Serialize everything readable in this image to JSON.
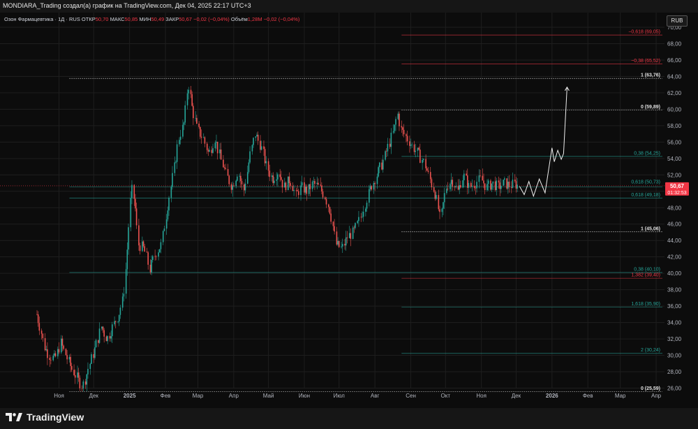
{
  "header": {
    "title": "MONDIARA_Trading создал(а) график на TradingView.com, Дек 04, 2025 22:17 UTC+3"
  },
  "symbol_bar": {
    "symbol": "Озон Фармацевтика · 1Д · RUS",
    "items": [
      {
        "label": "ОТКР",
        "value": "50,70"
      },
      {
        "label": "МАКС",
        "value": "50,85"
      },
      {
        "label": "МИН",
        "value": "50,49"
      },
      {
        "label": "ЗАКР",
        "value": "50,67"
      },
      {
        "label": "",
        "value": "−0,02 (−0,04%)"
      },
      {
        "label": "Объём",
        "value": "1,28М"
      },
      {
        "label": "",
        "value": "−0,02 (−0,04%)"
      }
    ]
  },
  "currency": "RUB",
  "last_price": {
    "price": "50,67",
    "countdown": "01:32:53",
    "value": 50.67
  },
  "colors": {
    "up": "#26a69a",
    "down": "#ef5350",
    "background": "#0c0c0c",
    "grid": "#1e1e1e",
    "label_red": "#f23645"
  },
  "brand": {
    "name": "TradingView",
    "icon": "tradingview-logo-icon"
  },
  "chart_data": {
    "type": "candlestick",
    "y_axis": {
      "ticks": [
        26,
        28,
        30,
        32,
        34,
        36,
        38,
        40,
        42,
        44,
        46,
        48,
        50,
        52,
        54,
        56,
        58,
        60,
        62,
        64,
        66,
        68,
        70
      ],
      "tick_labels": [
        "26,00",
        "28,00",
        "30,00",
        "32,00",
        "34,00",
        "36,00",
        "38,00",
        "40,00",
        "42,00",
        "44,00",
        "46,00",
        "48,00",
        "50,00",
        "52,00",
        "54,00",
        "56,00",
        "58,00",
        "60,00",
        "62,00",
        "64,00",
        "66,00",
        "68,00",
        "70,00"
      ],
      "range": [
        24.5,
        71
      ]
    },
    "x_axis": {
      "labels": [
        "Ноя",
        "Дек",
        "2025",
        "Фев",
        "Мар",
        "Апр",
        "Май",
        "Июн",
        "Июл",
        "Авг",
        "Сен",
        "Окт",
        "Ноя",
        "Дек",
        "2026",
        "Фев",
        "Мар",
        "Апр"
      ],
      "label_dates": [
        "2024-11-01",
        "2024-12-01",
        "2025-01-01",
        "2025-02-01",
        "2025-03-01",
        "2025-04-01",
        "2025-05-01",
        "2025-06-01",
        "2025-07-01",
        "2025-08-01",
        "2025-09-01",
        "2025-10-01",
        "2025-11-01",
        "2025-12-01",
        "2026-01-01",
        "2026-02-01",
        "2026-03-01",
        "2026-04-01"
      ],
      "range_dates": [
        "2024-10-13",
        "2026-04-07"
      ]
    },
    "price_path": [
      [
        "2024-10-13",
        35.0
      ],
      [
        "2024-10-16",
        33.5
      ],
      [
        "2024-10-20",
        31.0
      ],
      [
        "2024-10-24",
        30.0
      ],
      [
        "2024-10-29",
        29.5
      ],
      [
        "2024-11-03",
        31.5
      ],
      [
        "2024-11-06",
        30.5
      ],
      [
        "2024-11-12",
        28.5
      ],
      [
        "2024-11-18",
        27.0
      ],
      [
        "2024-11-22",
        26.2
      ],
      [
        "2024-11-27",
        28.5
      ],
      [
        "2024-12-03",
        31.0
      ],
      [
        "2024-12-08",
        33.5
      ],
      [
        "2024-12-13",
        32.0
      ],
      [
        "2024-12-18",
        33.5
      ],
      [
        "2024-12-23",
        35.0
      ],
      [
        "2024-12-27",
        37.0
      ],
      [
        "2024-12-31",
        44.0
      ],
      [
        "2025-01-03",
        50.5
      ],
      [
        "2025-01-06",
        48.5
      ],
      [
        "2025-01-09",
        43.5
      ],
      [
        "2025-01-14",
        43.0
      ],
      [
        "2025-01-19",
        40.5
      ],
      [
        "2025-01-24",
        42.5
      ],
      [
        "2025-01-29",
        43.5
      ],
      [
        "2025-02-03",
        48.0
      ],
      [
        "2025-02-08",
        52.0
      ],
      [
        "2025-02-13",
        56.5
      ],
      [
        "2025-02-18",
        58.5
      ],
      [
        "2025-02-21",
        63.5
      ],
      [
        "2025-02-24",
        60.5
      ],
      [
        "2025-03-01",
        57.5
      ],
      [
        "2025-03-06",
        56.5
      ],
      [
        "2025-03-11",
        54.5
      ],
      [
        "2025-03-16",
        56.5
      ],
      [
        "2025-03-21",
        54.0
      ],
      [
        "2025-03-26",
        52.0
      ],
      [
        "2025-03-31",
        50.5
      ],
      [
        "2025-04-05",
        52.5
      ],
      [
        "2025-04-10",
        50.0
      ],
      [
        "2025-04-15",
        54.0
      ],
      [
        "2025-04-20",
        57.0
      ],
      [
        "2025-04-25",
        55.5
      ],
      [
        "2025-04-30",
        53.0
      ],
      [
        "2025-05-05",
        51.5
      ],
      [
        "2025-05-10",
        52.5
      ],
      [
        "2025-05-15",
        50.5
      ],
      [
        "2025-05-20",
        51.5
      ],
      [
        "2025-05-25",
        49.5
      ],
      [
        "2025-05-30",
        50.5
      ],
      [
        "2025-06-04",
        50.0
      ],
      [
        "2025-06-09",
        51.0
      ],
      [
        "2025-06-14",
        50.5
      ],
      [
        "2025-06-19",
        49.5
      ],
      [
        "2025-06-24",
        47.5
      ],
      [
        "2025-06-29",
        43.5
      ],
      [
        "2025-07-04",
        43.0
      ],
      [
        "2025-07-09",
        44.5
      ],
      [
        "2025-07-14",
        45.0
      ],
      [
        "2025-07-19",
        46.5
      ],
      [
        "2025-07-24",
        48.5
      ],
      [
        "2025-07-29",
        50.5
      ],
      [
        "2025-08-03",
        52.0
      ],
      [
        "2025-08-08",
        53.5
      ],
      [
        "2025-08-13",
        55.5
      ],
      [
        "2025-08-18",
        57.5
      ],
      [
        "2025-08-21",
        59.5
      ],
      [
        "2025-08-24",
        57.5
      ],
      [
        "2025-08-29",
        56.5
      ],
      [
        "2025-09-03",
        55.5
      ],
      [
        "2025-09-08",
        54.5
      ],
      [
        "2025-09-13",
        53.5
      ],
      [
        "2025-09-18",
        51.5
      ],
      [
        "2025-09-23",
        49.5
      ],
      [
        "2025-09-27",
        46.5
      ],
      [
        "2025-10-02",
        50.5
      ],
      [
        "2025-10-07",
        51.5
      ],
      [
        "2025-10-12",
        50.0
      ],
      [
        "2025-10-17",
        52.0
      ],
      [
        "2025-10-22",
        50.5
      ],
      [
        "2025-10-27",
        51.0
      ],
      [
        "2025-11-01",
        51.5
      ],
      [
        "2025-11-06",
        50.5
      ],
      [
        "2025-11-11",
        51.0
      ],
      [
        "2025-11-16",
        50.5
      ],
      [
        "2025-11-21",
        51.0
      ],
      [
        "2025-11-26",
        50.7
      ],
      [
        "2025-11-30",
        50.9
      ],
      [
        "2025-12-04",
        50.67
      ]
    ],
    "forecast_path": [
      [
        "2025-12-04",
        50.6
      ],
      [
        "2025-12-08",
        49.6
      ],
      [
        "2025-12-12",
        51.2
      ],
      [
        "2025-12-16",
        49.4
      ],
      [
        "2025-12-21",
        51.5
      ],
      [
        "2025-12-26",
        49.8
      ],
      [
        "2026-01-01",
        55.3
      ],
      [
        "2026-01-03",
        53.6
      ],
      [
        "2026-01-06",
        55.0
      ],
      [
        "2026-01-09",
        53.9
      ],
      [
        "2026-01-11",
        54.6
      ],
      [
        "2026-01-14",
        62.7
      ]
    ],
    "fib_levels": [
      {
        "label": "−0,618 (69,05)",
        "value": 69.05,
        "color": "#f23645",
        "x_start_date": "2025-08-24",
        "emph": false
      },
      {
        "label": "−0,38 (65,52)",
        "value": 65.52,
        "color": "#f23645",
        "x_start_date": "2025-08-24",
        "emph": false
      },
      {
        "label": "1 (63,76)",
        "value": 63.76,
        "color": "#e0e0e0",
        "x_start_date": "2024-11-10",
        "emph": true
      },
      {
        "label": "0 (59,89)",
        "value": 59.89,
        "color": "#e0e0e0",
        "x_start_date": "2025-08-24",
        "emph": true
      },
      {
        "label": "0,38 (54,25)",
        "value": 54.25,
        "color": "#26a69a",
        "x_start_date": "2025-08-24",
        "emph": false
      },
      {
        "label": "0,618 (50,73)",
        "value": 50.73,
        "color": "#26a69a",
        "x_start_date": "2024-11-10",
        "emph": false,
        "line_y": 50.55
      },
      {
        "label": "0,618 (49,18)",
        "value": 49.18,
        "color": "#26a69a",
        "x_start_date": "2024-11-10",
        "emph": false
      },
      {
        "label": "1 (45,06)",
        "value": 45.06,
        "color": "#e0e0e0",
        "x_start_date": "2025-08-24",
        "emph": true
      },
      {
        "label": "0,38 (40,10)",
        "value": 40.1,
        "color": "#26a69a",
        "x_start_date": "2024-11-10",
        "emph": false
      },
      {
        "label": "1,382 (39,40)",
        "value": 39.4,
        "color": "#f23645",
        "x_start_date": "2025-08-24",
        "emph": false
      },
      {
        "label": "1,618 (35,90)",
        "value": 35.9,
        "color": "#26a69a",
        "x_start_date": "2025-08-24",
        "emph": false
      },
      {
        "label": "2 (30,24)",
        "value": 30.24,
        "color": "#26a69a",
        "x_start_date": "2025-08-24",
        "emph": false
      },
      {
        "label": "0 (25,59)",
        "value": 25.59,
        "color": "#e0e0e0",
        "x_start_date": "2024-11-10",
        "emph": true
      }
    ]
  }
}
